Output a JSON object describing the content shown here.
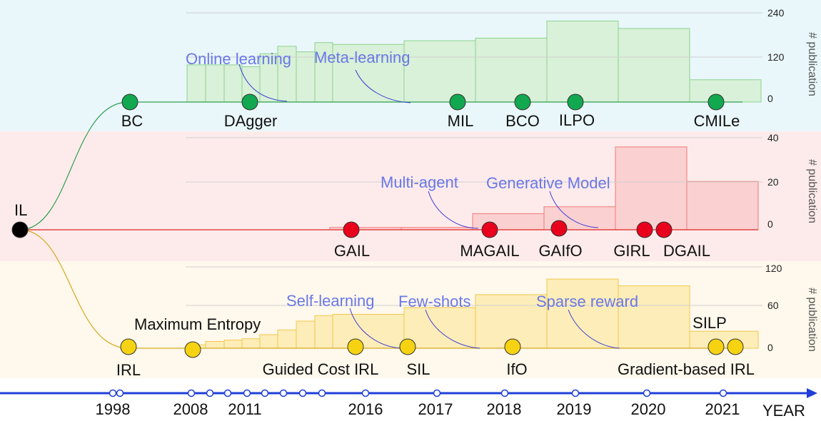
{
  "root": {
    "label": "IL"
  },
  "timeline": {
    "axis_label": "YEAR",
    "year_labels": [
      "1998",
      "2008",
      "2011",
      "2016",
      "2017",
      "2018",
      "2019",
      "2020",
      "2021"
    ],
    "color": "#1f3fd8"
  },
  "panels": [
    {
      "id": "bc",
      "background": "#e9f7fb",
      "bar_fill": "#d8f1d8",
      "bar_stroke": "#8fd18f",
      "line_color": "#2e9e4f",
      "node_color": "#11a84f",
      "ylabel": "# publication",
      "ticks": [
        "240",
        "120",
        "0"
      ],
      "methods": [
        {
          "label": "BC"
        },
        {
          "label": "DAgger"
        },
        {
          "label": "MIL"
        },
        {
          "label": "BCO"
        },
        {
          "label": "ILPO"
        },
        {
          "label": "CMILe"
        }
      ],
      "topics": [
        {
          "label": "Online learning"
        },
        {
          "label": "Meta-learning"
        }
      ],
      "bars": [
        100,
        100,
        100,
        95,
        130,
        150,
        135,
        160,
        155,
        165,
        172,
        218,
        198,
        60
      ]
    },
    {
      "id": "gail",
      "background": "#fdebeb",
      "bar_fill": "#fbd0d0",
      "bar_stroke": "#ef7a7a",
      "line_color": "#e02424",
      "node_color": "#e8001c",
      "ylabel": "# publication",
      "ticks": [
        "40",
        "20",
        "0"
      ],
      "methods": [
        {
          "label": "GAIL"
        },
        {
          "label": "MAGAIL"
        },
        {
          "label": "GAIfO"
        },
        {
          "label": "GIRL"
        },
        {
          "label": "DGAIL"
        }
      ],
      "topics": [
        {
          "label": "Multi-agent"
        },
        {
          "label": "Generative Model"
        }
      ],
      "bars": [
        1,
        1,
        7,
        10,
        36,
        21,
        10
      ]
    },
    {
      "id": "irl",
      "background": "#fff8ec",
      "bar_fill": "#fdedb8",
      "bar_stroke": "#f0c94e",
      "line_color": "#d4aa1c",
      "node_color": "#f5d312",
      "ylabel": "# publication",
      "ticks": [
        "120",
        "60",
        "0"
      ],
      "methods": [
        {
          "label": "IRL"
        },
        {
          "label": "Maximum Entropy"
        },
        {
          "label": "Guided Cost IRL"
        },
        {
          "label": "SIL"
        },
        {
          "label": "IfO"
        },
        {
          "label": "SILP"
        },
        {
          "label": "Gradient-based IRL"
        }
      ],
      "topics": [
        {
          "label": "Self-learning"
        },
        {
          "label": "Few-shots"
        },
        {
          "label": "Sparse reward"
        }
      ],
      "bars": [
        5,
        10,
        12,
        14,
        20,
        27,
        40,
        48,
        50,
        60,
        79,
        102,
        92,
        25
      ]
    }
  ]
}
